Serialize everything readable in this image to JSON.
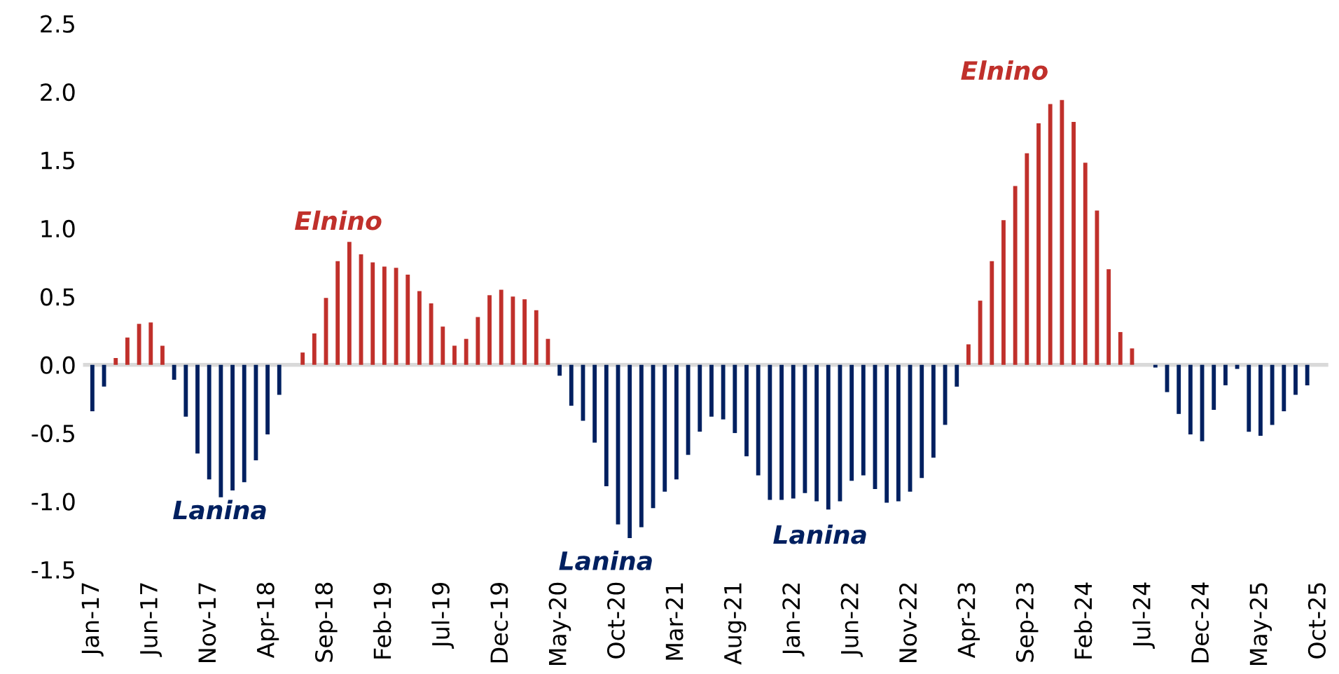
{
  "chart_data": {
    "type": "bar",
    "categories": [
      "Jan-17",
      null,
      null,
      null,
      null,
      "Jun-17",
      null,
      null,
      null,
      null,
      "Nov-17",
      null,
      null,
      null,
      null,
      "Apr-18",
      null,
      null,
      null,
      null,
      "Sep-18",
      null,
      null,
      null,
      null,
      "Feb-19",
      null,
      null,
      null,
      null,
      "Jul-19",
      null,
      null,
      null,
      null,
      "Dec-19",
      null,
      null,
      null,
      null,
      "May-20",
      null,
      null,
      null,
      null,
      "Oct-20",
      null,
      null,
      null,
      null,
      "Mar-21",
      null,
      null,
      null,
      null,
      "Aug-21",
      null,
      null,
      null,
      null,
      "Jan-22",
      null,
      null,
      null,
      null,
      "Jun-22",
      null,
      null,
      null,
      null,
      "Nov-22",
      null,
      null,
      null,
      null,
      "Apr-23",
      null,
      null,
      null,
      null,
      "Sep-23",
      null,
      null,
      null,
      null,
      "Feb-24",
      null,
      null,
      null,
      null,
      "Jul-24",
      null,
      null,
      null,
      null,
      "Dec-24",
      null,
      null,
      null,
      null,
      "May-25",
      null,
      null,
      null,
      null,
      "Oct-25"
    ],
    "values": [
      -0.34,
      -0.16,
      0.05,
      0.2,
      0.3,
      0.31,
      0.14,
      -0.11,
      -0.38,
      -0.65,
      -0.84,
      -0.97,
      -0.92,
      -0.86,
      -0.7,
      -0.51,
      -0.22,
      0.0,
      0.09,
      0.23,
      0.49,
      0.76,
      0.9,
      0.81,
      0.75,
      0.72,
      0.71,
      0.66,
      0.54,
      0.45,
      0.28,
      0.14,
      0.19,
      0.35,
      0.51,
      0.55,
      0.5,
      0.48,
      0.4,
      0.19,
      -0.08,
      -0.3,
      -0.41,
      -0.57,
      -0.89,
      -1.17,
      -1.27,
      -1.19,
      -1.05,
      -0.93,
      -0.84,
      -0.66,
      -0.49,
      -0.38,
      -0.4,
      -0.5,
      -0.67,
      -0.81,
      -0.99,
      -0.99,
      -0.98,
      -0.94,
      -1.0,
      -1.06,
      -1.0,
      -0.85,
      -0.81,
      -0.91,
      -1.01,
      -1.0,
      -0.93,
      -0.83,
      -0.68,
      -0.44,
      -0.16,
      0.15,
      0.47,
      0.76,
      1.06,
      1.31,
      1.55,
      1.77,
      1.91,
      1.94,
      1.78,
      1.48,
      1.13,
      0.7,
      0.24,
      0.12,
      0.0,
      -0.02,
      -0.2,
      -0.36,
      -0.51,
      -0.56,
      -0.33,
      -0.15,
      -0.03,
      -0.49,
      -0.52,
      -0.44,
      -0.34,
      -0.22,
      -0.15,
      0.0
    ],
    "colors": [
      "#002060",
      "#002060",
      "#c0302b",
      "#c0302b",
      "#c0302b",
      "#c0302b",
      "#c0302b",
      "#002060",
      "#002060",
      "#002060",
      "#002060",
      "#002060",
      "#002060",
      "#002060",
      "#002060",
      "#002060",
      "#002060",
      "#bfbfbf",
      "#c0302b",
      "#c0302b",
      "#c0302b",
      "#c0302b",
      "#c0302b",
      "#c0302b",
      "#c0302b",
      "#c0302b",
      "#c0302b",
      "#c0302b",
      "#c0302b",
      "#c0302b",
      "#c0302b",
      "#c0302b",
      "#c0302b",
      "#c0302b",
      "#c0302b",
      "#c0302b",
      "#c0302b",
      "#c0302b",
      "#c0302b",
      "#c0302b",
      "#002060",
      "#002060",
      "#002060",
      "#002060",
      "#002060",
      "#002060",
      "#002060",
      "#002060",
      "#002060",
      "#002060",
      "#002060",
      "#002060",
      "#002060",
      "#002060",
      "#002060",
      "#002060",
      "#002060",
      "#002060",
      "#002060",
      "#002060",
      "#002060",
      "#002060",
      "#002060",
      "#002060",
      "#002060",
      "#002060",
      "#002060",
      "#002060",
      "#002060",
      "#002060",
      "#002060",
      "#002060",
      "#002060",
      "#002060",
      "#002060",
      "#c0302b",
      "#c0302b",
      "#c0302b",
      "#c0302b",
      "#c0302b",
      "#c0302b",
      "#c0302b",
      "#c0302b",
      "#c0302b",
      "#c0302b",
      "#c0302b",
      "#c0302b",
      "#c0302b",
      "#c0302b",
      "#c0302b",
      "#bfbfbf",
      "#002060",
      "#002060",
      "#002060",
      "#002060",
      "#002060",
      "#002060",
      "#002060",
      "#002060",
      "#002060",
      "#002060",
      "#002060",
      "#002060",
      "#002060",
      "#002060",
      "#bfbfbf"
    ],
    "ylim": [
      -1.5,
      2.5
    ],
    "yticks": [
      -1.5,
      {
        "value": -1,
        "label": "-1.0"
      },
      -0.5,
      {
        "value": 0,
        "label": "0.0"
      },
      0.5,
      {
        "value": 1,
        "label": "1.0"
      },
      1.5,
      {
        "value": 2,
        "label": "2.0"
      },
      2.5
    ],
    "ref_lines": [
      {
        "axis": "y",
        "value": 0,
        "color": "#d9d9d9"
      }
    ],
    "annotations": [
      "Elnino",
      "Lanina",
      "Lanina",
      "Lanina",
      "Elnino"
    ],
    "grid": false,
    "legend": false
  }
}
